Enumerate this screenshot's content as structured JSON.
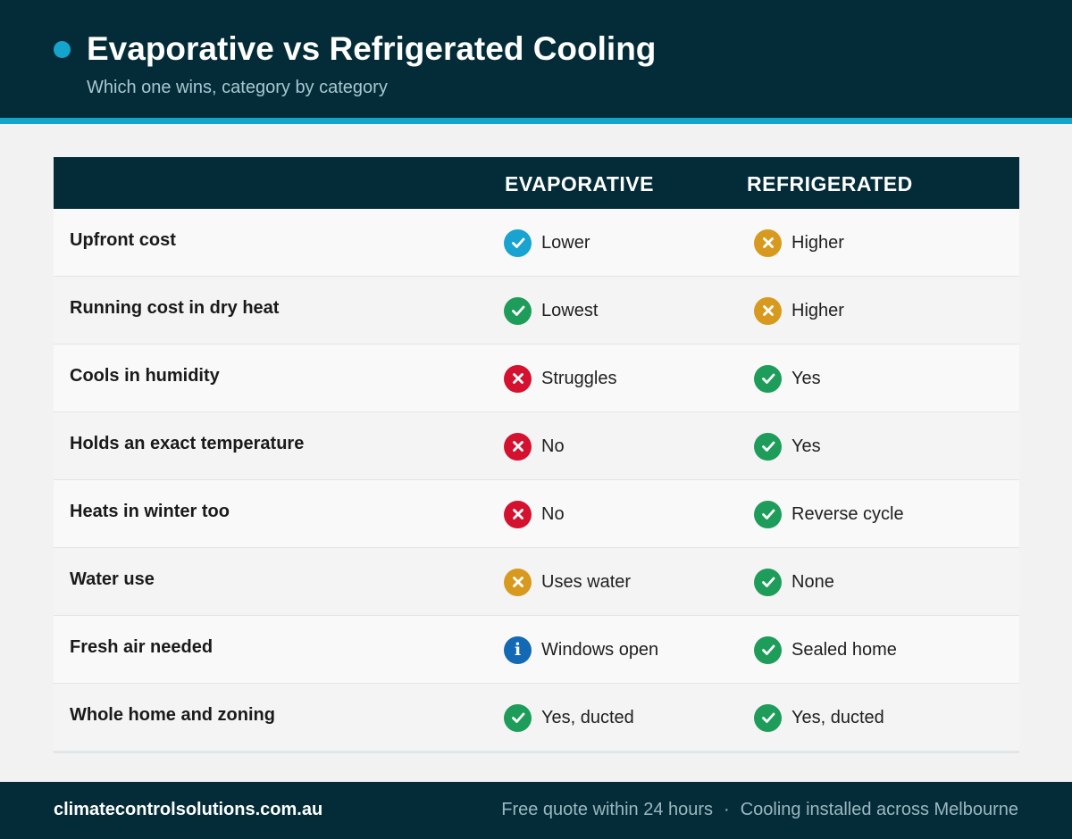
{
  "header": {
    "title": "Evaporative vs Refrigerated Cooling",
    "subtitle": "Which one wins, category by category"
  },
  "table": {
    "columns": [
      "",
      "EVAPORATIVE",
      "REFRIGERATED"
    ],
    "rows": [
      {
        "category": "Upfront cost",
        "evaporative": {
          "icon": "check-icon",
          "status": "check-blue",
          "text": "Lower"
        },
        "refrigerated": {
          "icon": "cross-icon",
          "status": "cross-amber",
          "text": "Higher"
        }
      },
      {
        "category": "Running cost in dry heat",
        "evaporative": {
          "icon": "check-icon",
          "status": "check-green",
          "text": "Lowest"
        },
        "refrigerated": {
          "icon": "cross-icon",
          "status": "cross-amber",
          "text": "Higher"
        }
      },
      {
        "category": "Cools in humidity",
        "evaporative": {
          "icon": "cross-icon",
          "status": "cross-red",
          "text": "Struggles"
        },
        "refrigerated": {
          "icon": "check-icon",
          "status": "check-green",
          "text": "Yes"
        }
      },
      {
        "category": "Holds an exact temperature",
        "evaporative": {
          "icon": "cross-icon",
          "status": "cross-red",
          "text": "No"
        },
        "refrigerated": {
          "icon": "check-icon",
          "status": "check-green",
          "text": "Yes"
        }
      },
      {
        "category": "Heats in winter too",
        "evaporative": {
          "icon": "cross-icon",
          "status": "cross-red",
          "text": "No"
        },
        "refrigerated": {
          "icon": "check-icon",
          "status": "check-green",
          "text": "Reverse cycle"
        }
      },
      {
        "category": "Water use",
        "evaporative": {
          "icon": "cross-icon",
          "status": "cross-amber",
          "text": "Uses water"
        },
        "refrigerated": {
          "icon": "check-icon",
          "status": "check-green",
          "text": "None"
        }
      },
      {
        "category": "Fresh air needed",
        "evaporative": {
          "icon": "info-icon",
          "status": "info-blue",
          "text": "Windows open"
        },
        "refrigerated": {
          "icon": "check-icon",
          "status": "check-green",
          "text": "Sealed home"
        }
      },
      {
        "category": "Whole home and zoning",
        "evaporative": {
          "icon": "check-icon",
          "status": "check-green",
          "text": "Yes, ducted"
        },
        "refrigerated": {
          "icon": "check-icon",
          "status": "check-green",
          "text": "Yes, ducted"
        }
      }
    ]
  },
  "footer": {
    "website": "climatecontrolsolutions.com.au",
    "tagline_left": "Free quote within 24 hours",
    "separator": "·",
    "tagline_right": "Cooling installed across Melbourne"
  },
  "colors": {
    "navy": "#032c38",
    "accent": "#14a5cc",
    "green": "#1e9c5a",
    "red": "#d4122f",
    "amber": "#d79a1f",
    "info_blue": "#1369b3"
  }
}
